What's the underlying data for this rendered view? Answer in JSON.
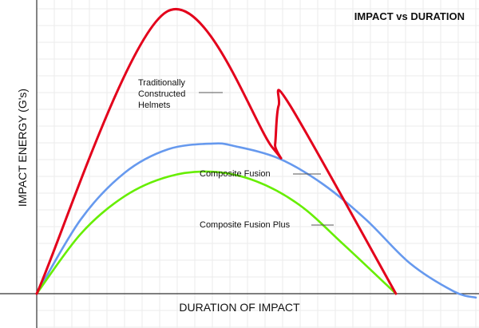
{
  "chart_data": {
    "type": "line",
    "title": "IMPACT vs DURATION",
    "xlabel": "DURATION OF IMPACT",
    "ylabel": "IMPACT ENERGY (G's)",
    "grid": true,
    "legend": "none",
    "xlim": [
      0,
      100
    ],
    "ylim": [
      0,
      100
    ],
    "series": [
      {
        "name": "Traditionally Constructed Helmets",
        "color": "#e3001b",
        "points": [
          [
            0,
            0
          ],
          [
            29.5,
            100
          ],
          [
            53.7,
            51.8
          ],
          [
            54.3,
            53
          ],
          [
            55.1,
            66.8
          ],
          [
            57.7,
            66.8
          ],
          [
            81.8,
            0
          ]
        ]
      },
      {
        "name": "Composite Fusion",
        "color": "#6699ee",
        "points": [
          [
            0,
            0
          ],
          [
            10,
            26.3
          ],
          [
            20,
            42.9
          ],
          [
            30,
            51.3
          ],
          [
            40,
            53.3
          ],
          [
            45,
            52.4
          ],
          [
            55,
            48.1
          ],
          [
            65,
            39.1
          ],
          [
            75,
            26.3
          ],
          [
            85,
            10.8
          ],
          [
            95,
            0.8
          ],
          [
            100,
            -1.4
          ]
        ]
      },
      {
        "name": "Composite Fusion Plus",
        "color": "#66ee00",
        "points": [
          [
            0,
            0
          ],
          [
            10,
            21.2
          ],
          [
            20,
            34.6
          ],
          [
            30,
            41.6
          ],
          [
            40,
            43.3
          ],
          [
            50,
            39.9
          ],
          [
            60,
            31.3
          ],
          [
            70,
            17.3
          ],
          [
            81.8,
            0
          ]
        ]
      }
    ],
    "annotations": [
      {
        "lines": [
          "Traditionally",
          "Constructed",
          "Helmets"
        ]
      },
      {
        "lines": [
          "Composite Fusion"
        ]
      },
      {
        "lines": [
          "Composite Fusion Plus"
        ]
      }
    ]
  }
}
